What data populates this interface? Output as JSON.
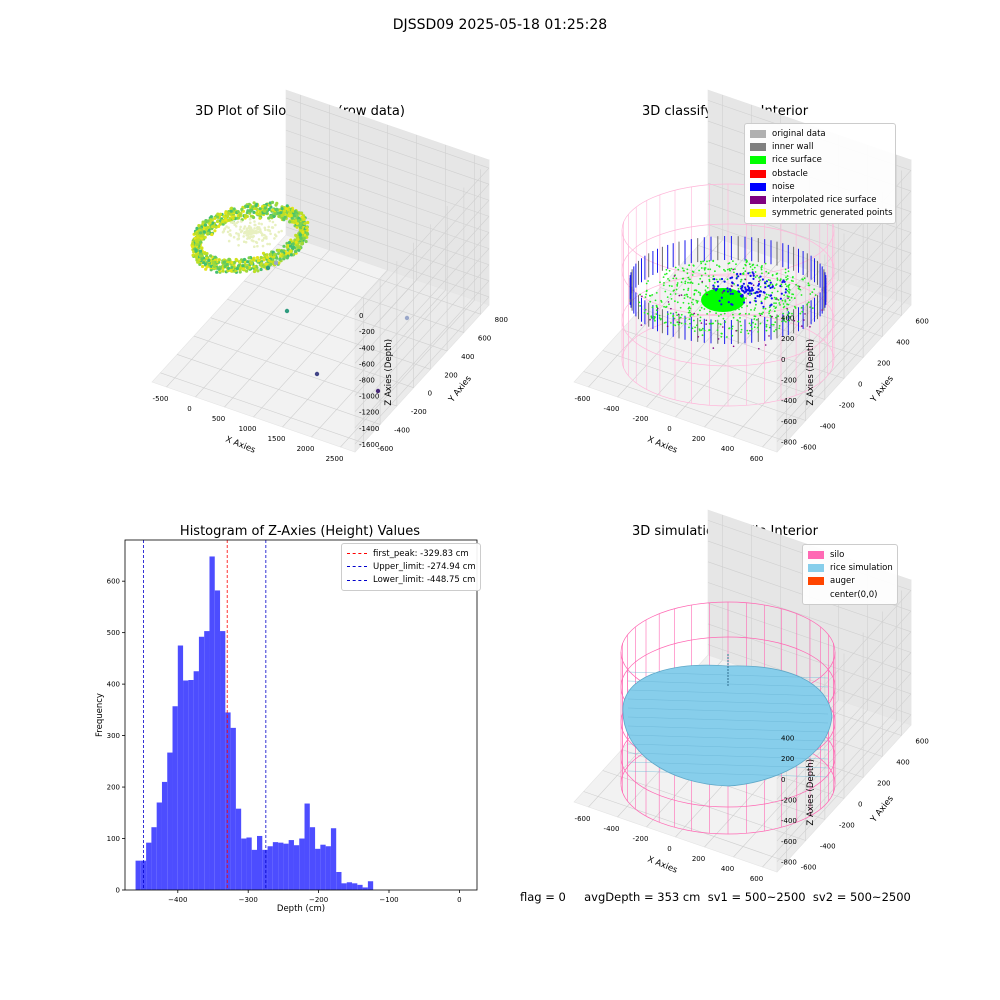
{
  "suptitle": "DJSSD09 2025-05-18 01:25:28",
  "footer": "flag = 0     avgDepth = 353 cm  sv1 = 500~2500  sv2 = 500~2500",
  "chart_data": [
    {
      "type": "scatter",
      "title": "3D Plot of Silo Interior(row data)",
      "xlabel": "X Axies",
      "ylabel": "Y Axies",
      "zlabel": "Z Axies (Depth)",
      "x_ticks": [
        "-500",
        "0",
        "500",
        "1000",
        "1500",
        "2000",
        "2500"
      ],
      "y_ticks": [
        "-600",
        "-400",
        "-200",
        "0",
        "200",
        "400",
        "600",
        "800"
      ],
      "z_ticks": [
        "0",
        "-200",
        "-400",
        "-600",
        "-800",
        "-1000",
        "-1200",
        "-1400",
        "-1600"
      ],
      "outlier_colors": [
        "#2e9b7f",
        "#9aa7c9",
        "#414487",
        "#482878"
      ]
    },
    {
      "type": "scatter",
      "title": "3D classify of Silo Interior",
      "xlabel": "X Axies",
      "ylabel": "Y Axies",
      "zlabel": "Z Axies (Depth)",
      "x_ticks": [
        "-600",
        "-400",
        "-200",
        "0",
        "200",
        "400",
        "600"
      ],
      "y_ticks": [
        "-600",
        "-400",
        "-200",
        "0",
        "200",
        "400",
        "600"
      ],
      "z_ticks": [
        "400",
        "200",
        "0",
        "-200",
        "-400",
        "-600",
        "-800"
      ],
      "legend": [
        {
          "label": "original data",
          "color": "#b0b0b0"
        },
        {
          "label": "inner wall",
          "color": "#808080"
        },
        {
          "label": "rice surface",
          "color": "#00ff00"
        },
        {
          "label": "obstacle",
          "color": "#ff0000"
        },
        {
          "label": "noise",
          "color": "#0000ff"
        },
        {
          "label": "interpolated rice surface",
          "color": "#800080"
        },
        {
          "label": "symmetric generated points",
          "color": "#ffff00"
        }
      ]
    },
    {
      "type": "bar",
      "title": "Histogram of Z-Axies (Height) Values",
      "xlabel": "Depth (cm)",
      "ylabel": "Frequency",
      "xlim": [
        -475,
        25
      ],
      "ylim": [
        0,
        680
      ],
      "x_ticks": [
        -400,
        -300,
        -200,
        -100,
        0
      ],
      "y_ticks": [
        0,
        100,
        200,
        300,
        400,
        500,
        600
      ],
      "bin_start": -460,
      "bin_width": 7.5,
      "values": [
        57,
        57,
        92,
        122,
        170,
        210,
        267,
        357,
        475,
        407,
        408,
        425,
        492,
        503,
        648,
        582,
        503,
        345,
        315,
        158,
        100,
        102,
        78,
        105,
        78,
        85,
        93,
        92,
        90,
        97,
        87,
        100,
        168,
        122,
        80,
        88,
        85,
        120,
        35,
        13,
        15,
        13,
        10,
        5,
        17
      ],
      "bar_color": "#4d4dff",
      "vlines": [
        {
          "label": "first_peak: -329.83 cm",
          "value": -329.83,
          "color": "#ff0000"
        },
        {
          "label": "Upper_limit: -274.94 cm",
          "value": -274.94,
          "color": "#0000cc"
        },
        {
          "label": "Lower_limit: -448.75 cm",
          "value": -448.75,
          "color": "#0000cc"
        }
      ]
    },
    {
      "type": "area",
      "title": "3D simulation of Silo Interior",
      "xlabel": "X Axies",
      "ylabel": "Y Axies",
      "zlabel": "Z Axies (Depth)",
      "x_ticks": [
        "-600",
        "-400",
        "-200",
        "0",
        "200",
        "400",
        "600"
      ],
      "y_ticks": [
        "-600",
        "-400",
        "-200",
        "0",
        "200",
        "400",
        "600"
      ],
      "z_ticks": [
        "400",
        "200",
        "0",
        "-200",
        "-400",
        "-600",
        "-800"
      ],
      "legend": [
        {
          "label": "silo",
          "color": "#ff69b4"
        },
        {
          "label": "rice simulation",
          "color": "#87ceeb"
        },
        {
          "label": "auger",
          "color": "#ff4500"
        },
        {
          "label": "center(0,0)",
          "color": ""
        }
      ]
    }
  ]
}
